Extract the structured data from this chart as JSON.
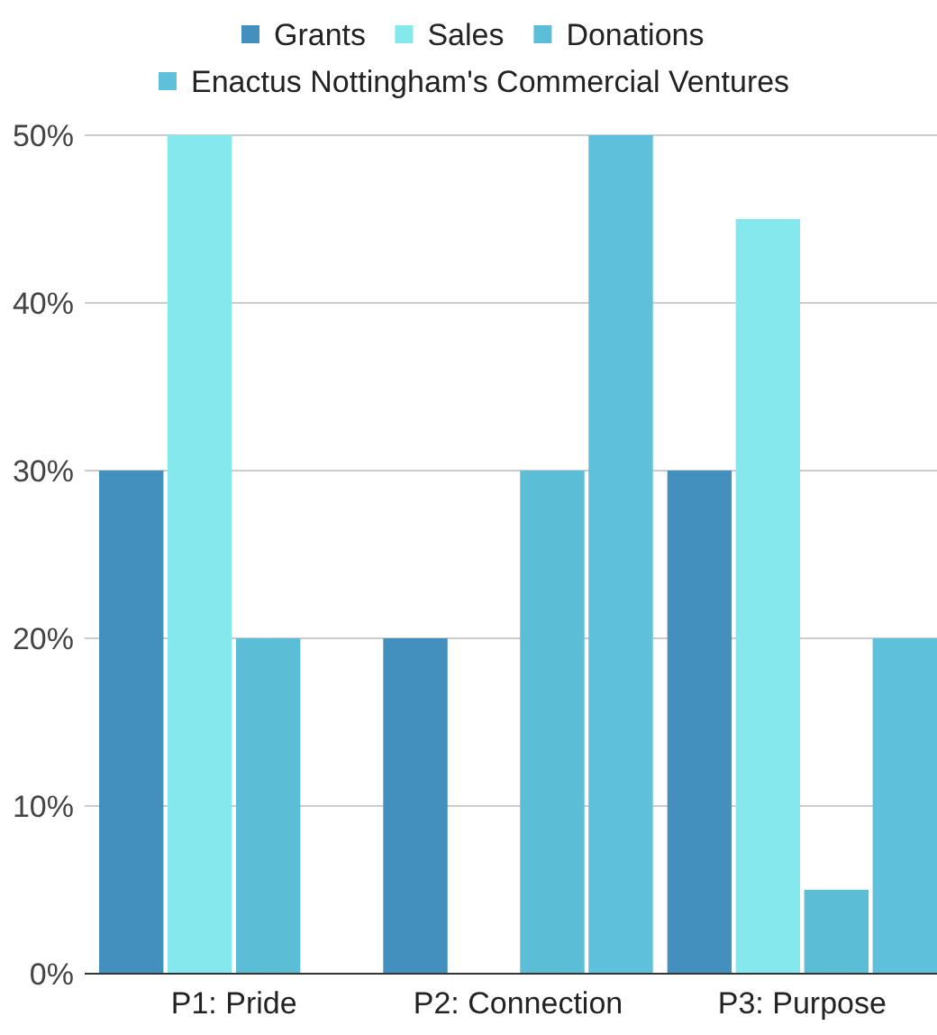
{
  "chart_data": {
    "type": "bar",
    "categories": [
      "P1: Pride",
      "P2: Connection",
      "P3: Purpose"
    ],
    "series": [
      {
        "name": "Grants",
        "color": "#4390bf",
        "values": [
          30,
          20,
          30
        ]
      },
      {
        "name": "Sales",
        "color": "#84e8ec",
        "values": [
          50,
          0,
          45
        ]
      },
      {
        "name": "Donations",
        "color": "#5bbdd6",
        "values": [
          20,
          30,
          5
        ]
      },
      {
        "name": "Enactus Nottingham's Commercial Ventures",
        "color": "#5ec0da",
        "values": [
          0,
          50,
          20
        ]
      }
    ],
    "ylim": [
      0,
      50
    ],
    "yticks": [
      {
        "value": 0,
        "label": "0%"
      },
      {
        "value": 10,
        "label": "10%"
      },
      {
        "value": 20,
        "label": "20%"
      },
      {
        "value": 30,
        "label": "30%"
      },
      {
        "value": 40,
        "label": "40%"
      },
      {
        "value": 50,
        "label": "50%"
      }
    ],
    "grid": "y",
    "legend": "top"
  }
}
